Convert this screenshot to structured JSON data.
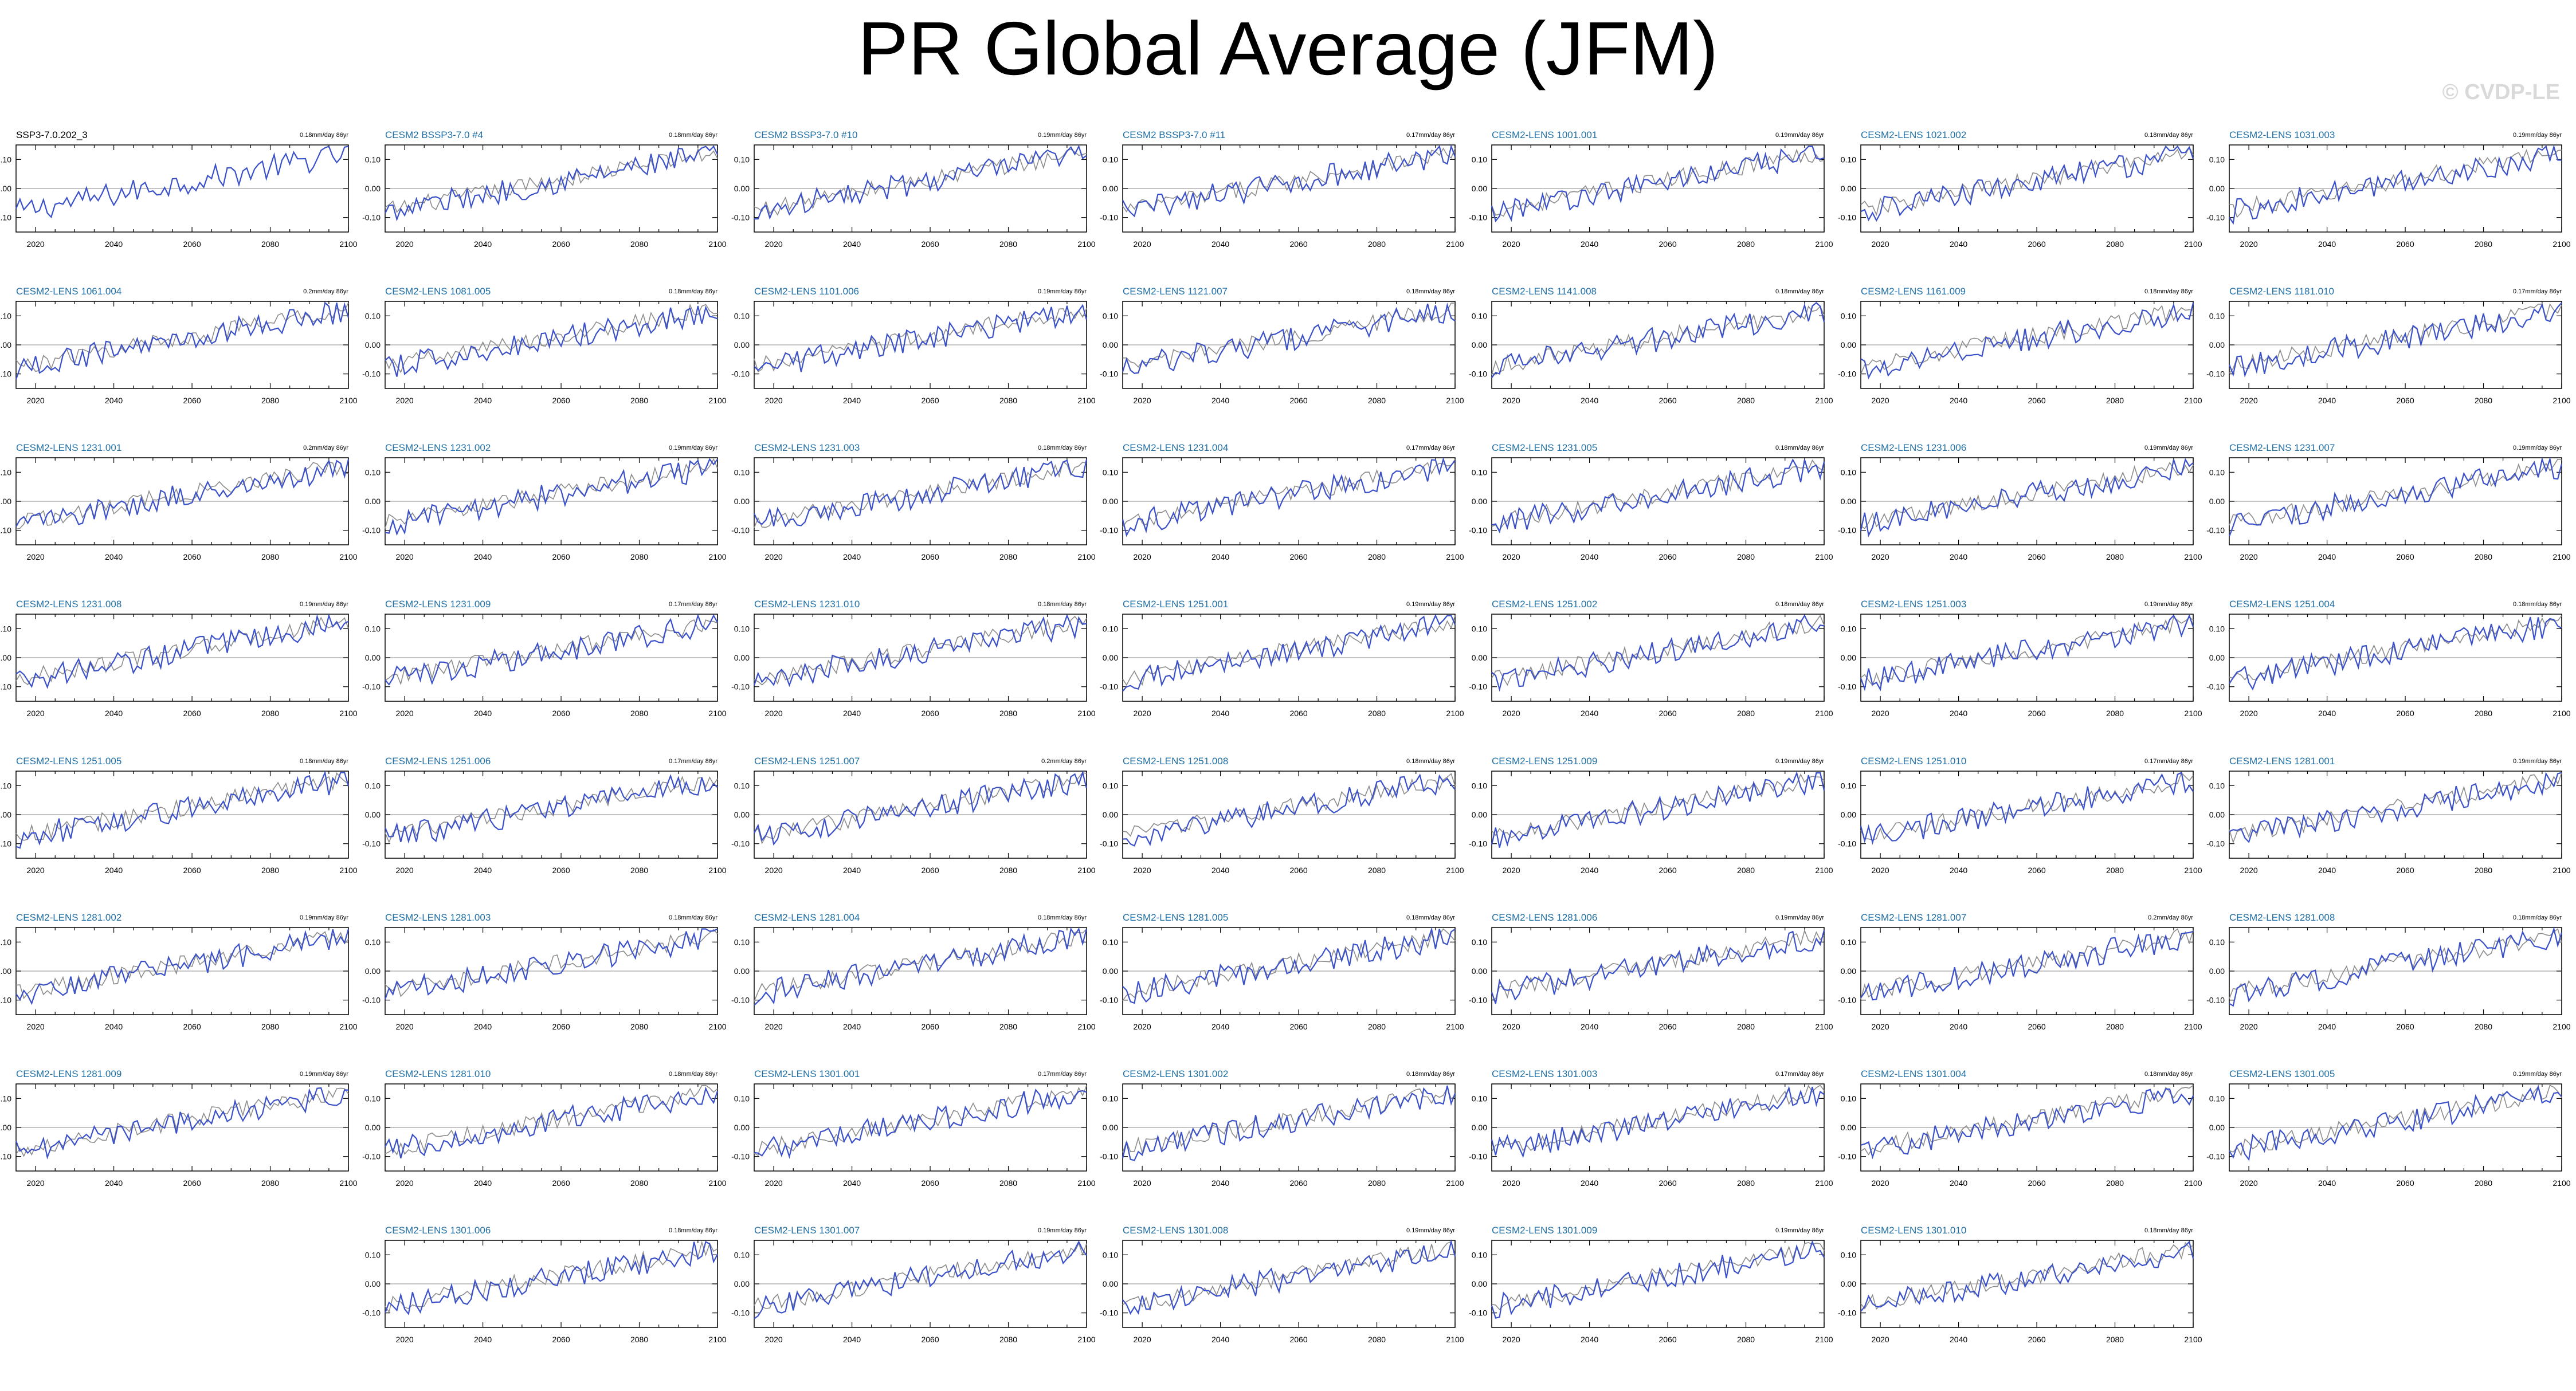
{
  "title": "PR Global Average (JFM)",
  "watermark": "© CVDP-LE",
  "colors": {
    "ensemble_mean": "#3a50c8",
    "obs": "#8c8c8c",
    "zero_line": "#b0b0b0",
    "member_title": "#1f6fa5",
    "first_title": "#000000"
  },
  "chart_data": {
    "type": "line",
    "x_ticks": [
      2020,
      2040,
      2060,
      2080,
      2100
    ],
    "y_ticks": [
      "0.10",
      "0.00",
      "-0.10"
    ],
    "xlim": [
      2015,
      2100
    ],
    "ylim": [
      -0.15,
      0.15
    ],
    "panels": [
      {
        "title": "SSP3-7.0.202_3",
        "rate": "0.18mm/day 86yr",
        "has_obs": false
      },
      {
        "title": "CESM2 BSSP3-7.0 #4",
        "rate": "0.18mm/day 86yr",
        "has_obs": true
      },
      {
        "title": "CESM2 BSSP3-7.0 #10",
        "rate": "0.19mm/day 86yr",
        "has_obs": true
      },
      {
        "title": "CESM2 BSSP3-7.0 #11",
        "rate": "0.17mm/day 86yr",
        "has_obs": true
      },
      {
        "title": "CESM2-LENS 1001.001",
        "rate": "0.19mm/day 86yr",
        "has_obs": true
      },
      {
        "title": "CESM2-LENS 1021.002",
        "rate": "0.18mm/day 86yr",
        "has_obs": true
      },
      {
        "title": "CESM2-LENS 1031.003",
        "rate": "0.19mm/day 86yr",
        "has_obs": true
      },
      {
        "title": "CESM2-LENS 1061.004",
        "rate": "0.2mm/day 86yr",
        "has_obs": true
      },
      {
        "title": "CESM2-LENS 1081.005",
        "rate": "0.18mm/day 86yr",
        "has_obs": true
      },
      {
        "title": "CESM2-LENS 1101.006",
        "rate": "0.19mm/day 86yr",
        "has_obs": true
      },
      {
        "title": "CESM2-LENS 1121.007",
        "rate": "0.18mm/day 86yr",
        "has_obs": true
      },
      {
        "title": "CESM2-LENS 1141.008",
        "rate": "0.18mm/day 86yr",
        "has_obs": true
      },
      {
        "title": "CESM2-LENS 1161.009",
        "rate": "0.18mm/day 86yr",
        "has_obs": true
      },
      {
        "title": "CESM2-LENS 1181.010",
        "rate": "0.17mm/day 86yr",
        "has_obs": true
      },
      {
        "title": "CESM2-LENS 1231.001",
        "rate": "0.2mm/day 86yr",
        "has_obs": true
      },
      {
        "title": "CESM2-LENS 1231.002",
        "rate": "0.19mm/day 86yr",
        "has_obs": true
      },
      {
        "title": "CESM2-LENS 1231.003",
        "rate": "0.18mm/day 86yr",
        "has_obs": true
      },
      {
        "title": "CESM2-LENS 1231.004",
        "rate": "0.17mm/day 86yr",
        "has_obs": true
      },
      {
        "title": "CESM2-LENS 1231.005",
        "rate": "0.18mm/day 86yr",
        "has_obs": true
      },
      {
        "title": "CESM2-LENS 1231.006",
        "rate": "0.19mm/day 86yr",
        "has_obs": true
      },
      {
        "title": "CESM2-LENS 1231.007",
        "rate": "0.19mm/day 86yr",
        "has_obs": true
      },
      {
        "title": "CESM2-LENS 1231.008",
        "rate": "0.19mm/day 86yr",
        "has_obs": true
      },
      {
        "title": "CESM2-LENS 1231.009",
        "rate": "0.17mm/day 86yr",
        "has_obs": true
      },
      {
        "title": "CESM2-LENS 1231.010",
        "rate": "0.18mm/day 86yr",
        "has_obs": true
      },
      {
        "title": "CESM2-LENS 1251.001",
        "rate": "0.19mm/day 86yr",
        "has_obs": true
      },
      {
        "title": "CESM2-LENS 1251.002",
        "rate": "0.18mm/day 86yr",
        "has_obs": true
      },
      {
        "title": "CESM2-LENS 1251.003",
        "rate": "0.19mm/day 86yr",
        "has_obs": true
      },
      {
        "title": "CESM2-LENS 1251.004",
        "rate": "0.18mm/day 86yr",
        "has_obs": true
      },
      {
        "title": "CESM2-LENS 1251.005",
        "rate": "0.18mm/day 86yr",
        "has_obs": true
      },
      {
        "title": "CESM2-LENS 1251.006",
        "rate": "0.17mm/day 86yr",
        "has_obs": true
      },
      {
        "title": "CESM2-LENS 1251.007",
        "rate": "0.2mm/day 86yr",
        "has_obs": true
      },
      {
        "title": "CESM2-LENS 1251.008",
        "rate": "0.18mm/day 86yr",
        "has_obs": true
      },
      {
        "title": "CESM2-LENS 1251.009",
        "rate": "0.19mm/day 86yr",
        "has_obs": true
      },
      {
        "title": "CESM2-LENS 1251.010",
        "rate": "0.17mm/day 86yr",
        "has_obs": true
      },
      {
        "title": "CESM2-LENS 1281.001",
        "rate": "0.19mm/day 86yr",
        "has_obs": true
      },
      {
        "title": "CESM2-LENS 1281.002",
        "rate": "0.19mm/day 86yr",
        "has_obs": true
      },
      {
        "title": "CESM2-LENS 1281.003",
        "rate": "0.18mm/day 86yr",
        "has_obs": true
      },
      {
        "title": "CESM2-LENS 1281.004",
        "rate": "0.18mm/day 86yr",
        "has_obs": true
      },
      {
        "title": "CESM2-LENS 1281.005",
        "rate": "0.18mm/day 86yr",
        "has_obs": true
      },
      {
        "title": "CESM2-LENS 1281.006",
        "rate": "0.19mm/day 86yr",
        "has_obs": true
      },
      {
        "title": "CESM2-LENS 1281.007",
        "rate": "0.2mm/day 86yr",
        "has_obs": true
      },
      {
        "title": "CESM2-LENS 1281.008",
        "rate": "0.18mm/day 86yr",
        "has_obs": true
      },
      {
        "title": "CESM2-LENS 1281.009",
        "rate": "0.19mm/day 86yr",
        "has_obs": true
      },
      {
        "title": "CESM2-LENS 1281.010",
        "rate": "0.18mm/day 86yr",
        "has_obs": true
      },
      {
        "title": "CESM2-LENS 1301.001",
        "rate": "0.17mm/day 86yr",
        "has_obs": true
      },
      {
        "title": "CESM2-LENS 1301.002",
        "rate": "0.18mm/day 86yr",
        "has_obs": true
      },
      {
        "title": "CESM2-LENS 1301.003",
        "rate": "0.17mm/day 86yr",
        "has_obs": true
      },
      {
        "title": "CESM2-LENS 1301.004",
        "rate": "0.18mm/day 86yr",
        "has_obs": true
      },
      {
        "title": "CESM2-LENS 1301.005",
        "rate": "0.19mm/day 86yr",
        "has_obs": true
      },
      {
        "title": "CESM2-LENS 1301.006",
        "rate": "0.18mm/day 86yr",
        "has_obs": true
      },
      {
        "title": "CESM2-LENS 1301.007",
        "rate": "0.19mm/day 86yr",
        "has_obs": true
      },
      {
        "title": "CESM2-LENS 1301.008",
        "rate": "0.19mm/day 86yr",
        "has_obs": true
      },
      {
        "title": "CESM2-LENS 1301.009",
        "rate": "0.19mm/day 86yr",
        "has_obs": true
      },
      {
        "title": "CESM2-LENS 1301.010",
        "rate": "0.18mm/day 86yr",
        "has_obs": true
      }
    ]
  }
}
